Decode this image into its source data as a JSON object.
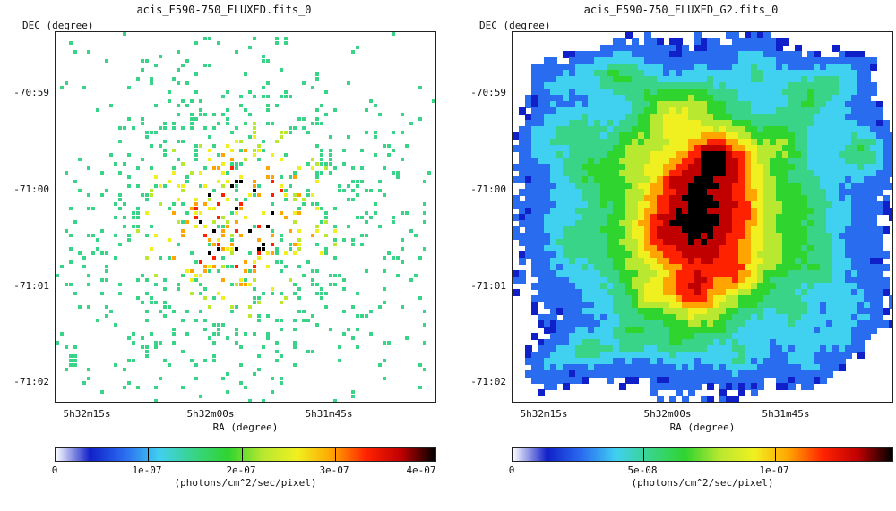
{
  "left_panel": {
    "title": "acis_E590-750_FLUXED.fits_0",
    "y_axis_label": "DEC (degree)",
    "y_ticks": [
      "-70:59",
      "-71:00",
      "-71:01",
      "-71:02"
    ],
    "x_ticks": [
      "5h32m15s",
      "5h32m00s",
      "5h31m45s"
    ],
    "x_axis_label": "RA (degree)",
    "colorbar_ticks": [
      "0",
      "1e-07",
      "2e-07",
      "3e-07",
      "4e-07"
    ],
    "colorbar_unit": "(photons/cm^2/sec/pixel)"
  },
  "right_panel": {
    "title": "acis_E590-750_FLUXED_G2.fits_0",
    "y_axis_label": "DEC (degree)",
    "y_ticks": [
      "-70:59",
      "-71:00",
      "-71:01",
      "-71:02"
    ],
    "x_ticks": [
      "5h32m15s",
      "5h32m00s",
      "5h31m45s"
    ],
    "x_axis_label": "RA (degree)",
    "colorbar_ticks": [
      "0",
      "5e-08",
      "1e-07"
    ],
    "colorbar_unit": "(photons/cm^2/sec/pixel)"
  },
  "colormap": [
    "#ffffff",
    "#1020c8",
    "#2a6cf0",
    "#40d0f0",
    "#39d488",
    "#2fd42f",
    "#b8e830",
    "#f0f020",
    "#ffa400",
    "#ff2200",
    "#c00000",
    "#000000"
  ]
}
